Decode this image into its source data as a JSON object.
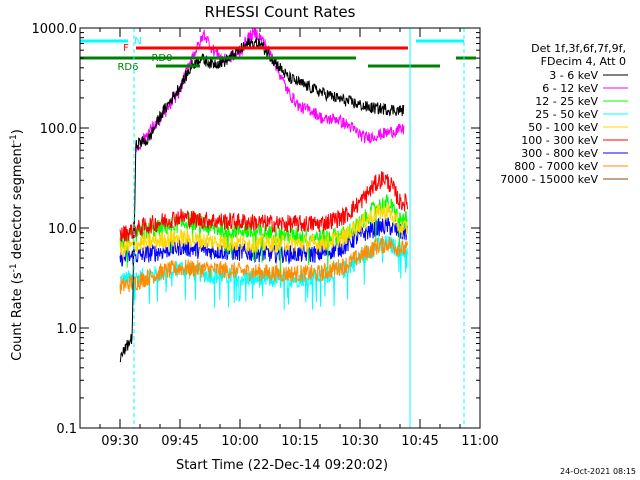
{
  "chart_data": {
    "type": "line",
    "title": "RHESSI Count Rates",
    "xlabel": "Start Time (22-Dec-14 09:20:02)",
    "ylabel_main": "Count Rate (s",
    "ylabel_sup": "-1",
    "ylabel_rest": " detector segment",
    "ylabel_sup2": "-1",
    "ylabel_end": ")",
    "y_scale": "log",
    "ylim": [
      0.1,
      1000
    ],
    "y_ticks": [
      {
        "value": 1000,
        "label": "1000.0"
      },
      {
        "value": 100,
        "label": "100.0"
      },
      {
        "value": 10,
        "label": "10.0"
      },
      {
        "value": 1,
        "label": "1.0"
      },
      {
        "value": 0.1,
        "label": "0.1"
      }
    ],
    "xlim_minutes": [
      0,
      100
    ],
    "x_ticks": [
      {
        "minute": 10,
        "label": "09:30"
      },
      {
        "minute": 25,
        "label": "09:45"
      },
      {
        "minute": 40,
        "label": "10:00"
      },
      {
        "minute": 55,
        "label": "10:15"
      },
      {
        "minute": 70,
        "label": "10:30"
      },
      {
        "minute": 85,
        "label": "10:45"
      },
      {
        "minute": 100,
        "label": "11:00"
      }
    ],
    "legend_header": [
      "Det 1f,3f,6f,7f,9f,",
      "FDecim 4, Att 0"
    ],
    "legend_position": "right",
    "footer": "24-Oct-2021 08:15",
    "series": [
      {
        "name": "3 - 6 keV",
        "color": "#000000",
        "points": [
          [
            10,
            0.5
          ],
          [
            13,
            0.8
          ],
          [
            14,
            70
          ],
          [
            17,
            75
          ],
          [
            20,
            130
          ],
          [
            25,
            260
          ],
          [
            28,
            420
          ],
          [
            30,
            500
          ],
          [
            33,
            440
          ],
          [
            36,
            460
          ],
          [
            40,
            600
          ],
          [
            42,
            700
          ],
          [
            45,
            700
          ],
          [
            48,
            500
          ],
          [
            52,
            320
          ],
          [
            56,
            270
          ],
          [
            60,
            230
          ],
          [
            64,
            200
          ],
          [
            68,
            180
          ],
          [
            72,
            160
          ],
          [
            76,
            155
          ],
          [
            80,
            150
          ],
          [
            81,
            150
          ]
        ]
      },
      {
        "name": "6 - 12 keV",
        "color": "#ff00ff",
        "points": [
          [
            14,
            60
          ],
          [
            17,
            90
          ],
          [
            20,
            120
          ],
          [
            25,
            240
          ],
          [
            28,
            520
          ],
          [
            30,
            700
          ],
          [
            31,
            880
          ],
          [
            33,
            620
          ],
          [
            36,
            480
          ],
          [
            40,
            560
          ],
          [
            42,
            800
          ],
          [
            44,
            900
          ],
          [
            46,
            720
          ],
          [
            48,
            520
          ],
          [
            52,
            230
          ],
          [
            55,
            160
          ],
          [
            58,
            150
          ],
          [
            61,
            120
          ],
          [
            64,
            125
          ],
          [
            68,
            100
          ],
          [
            71,
            80
          ],
          [
            73,
            82
          ],
          [
            76,
            88
          ],
          [
            80,
            96
          ],
          [
            81,
            96
          ]
        ]
      },
      {
        "name": "12 - 25 keV",
        "color": "#00ff00",
        "points": [
          [
            10,
            7.0
          ],
          [
            15,
            9.0
          ],
          [
            20,
            10.0
          ],
          [
            25,
            11.0
          ],
          [
            28,
            12.0
          ],
          [
            32,
            10.0
          ],
          [
            40,
            9.5
          ],
          [
            50,
            8.5
          ],
          [
            60,
            8.0
          ],
          [
            66,
            8.5
          ],
          [
            70,
            11.0
          ],
          [
            74,
            16.0
          ],
          [
            77,
            18.0
          ],
          [
            80,
            12.0
          ],
          [
            82,
            12.0
          ]
        ]
      },
      {
        "name": "25 - 50 keV",
        "color": "#00ffff",
        "points": [
          [
            10,
            3.0
          ],
          [
            15,
            3.2
          ],
          [
            20,
            3.5
          ],
          [
            25,
            4.0
          ],
          [
            30,
            3.5
          ],
          [
            40,
            3.2
          ],
          [
            50,
            3.0
          ],
          [
            60,
            3.3
          ],
          [
            66,
            3.8
          ],
          [
            70,
            5.0
          ],
          [
            74,
            6.5
          ],
          [
            77,
            7.0
          ],
          [
            80,
            6.0
          ],
          [
            82,
            6.0
          ]
        ]
      },
      {
        "name": "50 - 100 keV",
        "color": "#ffd700",
        "points": [
          [
            10,
            6.0
          ],
          [
            15,
            7.0
          ],
          [
            20,
            7.5
          ],
          [
            25,
            8.0
          ],
          [
            30,
            7.5
          ],
          [
            40,
            7.0
          ],
          [
            50,
            7.0
          ],
          [
            60,
            7.0
          ],
          [
            66,
            8.0
          ],
          [
            70,
            11.0
          ],
          [
            74,
            14.0
          ],
          [
            77,
            15.0
          ],
          [
            80,
            10.0
          ],
          [
            82,
            10.0
          ]
        ]
      },
      {
        "name": "100 - 300 keV",
        "color": "#ff0000",
        "points": [
          [
            10,
            8.5
          ],
          [
            15,
            10.0
          ],
          [
            20,
            11.5
          ],
          [
            25,
            13.0
          ],
          [
            30,
            12.0
          ],
          [
            40,
            11.5
          ],
          [
            50,
            11.0
          ],
          [
            60,
            11.0
          ],
          [
            66,
            13.0
          ],
          [
            70,
            18.0
          ],
          [
            74,
            28.0
          ],
          [
            76,
            32.0
          ],
          [
            78,
            26.0
          ],
          [
            80,
            18.0
          ],
          [
            82,
            18.0
          ]
        ]
      },
      {
        "name": "300 - 800 keV",
        "color": "#0000ff",
        "points": [
          [
            10,
            5.0
          ],
          [
            15,
            5.3
          ],
          [
            20,
            5.8
          ],
          [
            25,
            6.5
          ],
          [
            30,
            6.0
          ],
          [
            40,
            5.7
          ],
          [
            50,
            5.5
          ],
          [
            60,
            5.5
          ],
          [
            66,
            6.5
          ],
          [
            70,
            8.5
          ],
          [
            74,
            10.0
          ],
          [
            77,
            10.5
          ],
          [
            80,
            9.0
          ],
          [
            82,
            9.0
          ]
        ]
      },
      {
        "name": "800 - 7000 keV",
        "color": "#ff8c00",
        "points": [
          [
            10,
            2.6
          ],
          [
            15,
            3.0
          ],
          [
            20,
            3.6
          ],
          [
            25,
            4.0
          ],
          [
            30,
            3.9
          ],
          [
            40,
            3.7
          ],
          [
            50,
            3.5
          ],
          [
            60,
            3.5
          ],
          [
            66,
            4.2
          ],
          [
            70,
            5.2
          ],
          [
            74,
            6.5
          ],
          [
            77,
            7.0
          ],
          [
            80,
            6.3
          ],
          [
            82,
            6.0
          ]
        ]
      },
      {
        "name": "7000 - 15000 keV",
        "color": "#8b4513",
        "points": []
      }
    ],
    "flags": [
      {
        "label": "N",
        "color": "#00ffff",
        "segments": [
          [
            0,
            12
          ],
          [
            84,
            96
          ]
        ]
      },
      {
        "label": "F",
        "color": "#ff0000",
        "segments": [
          [
            14,
            82
          ]
        ]
      },
      {
        "label": "RD0",
        "color": "#008000",
        "segments": [
          [
            0,
            69
          ],
          [
            94,
            99
          ]
        ]
      },
      {
        "label": "RD6",
        "color": "#008000",
        "segments": [
          [
            19,
            30
          ],
          [
            72,
            90
          ]
        ]
      }
    ],
    "vlines": [
      {
        "minute": 0,
        "color": "#00ffff",
        "style": "solid"
      },
      {
        "minute": 13.5,
        "color": "#00ffff",
        "style": "dashed"
      },
      {
        "minute": 82.5,
        "color": "#00ffff",
        "style": "solid"
      },
      {
        "minute": 96,
        "color": "#00ffff",
        "style": "dashed"
      }
    ]
  }
}
